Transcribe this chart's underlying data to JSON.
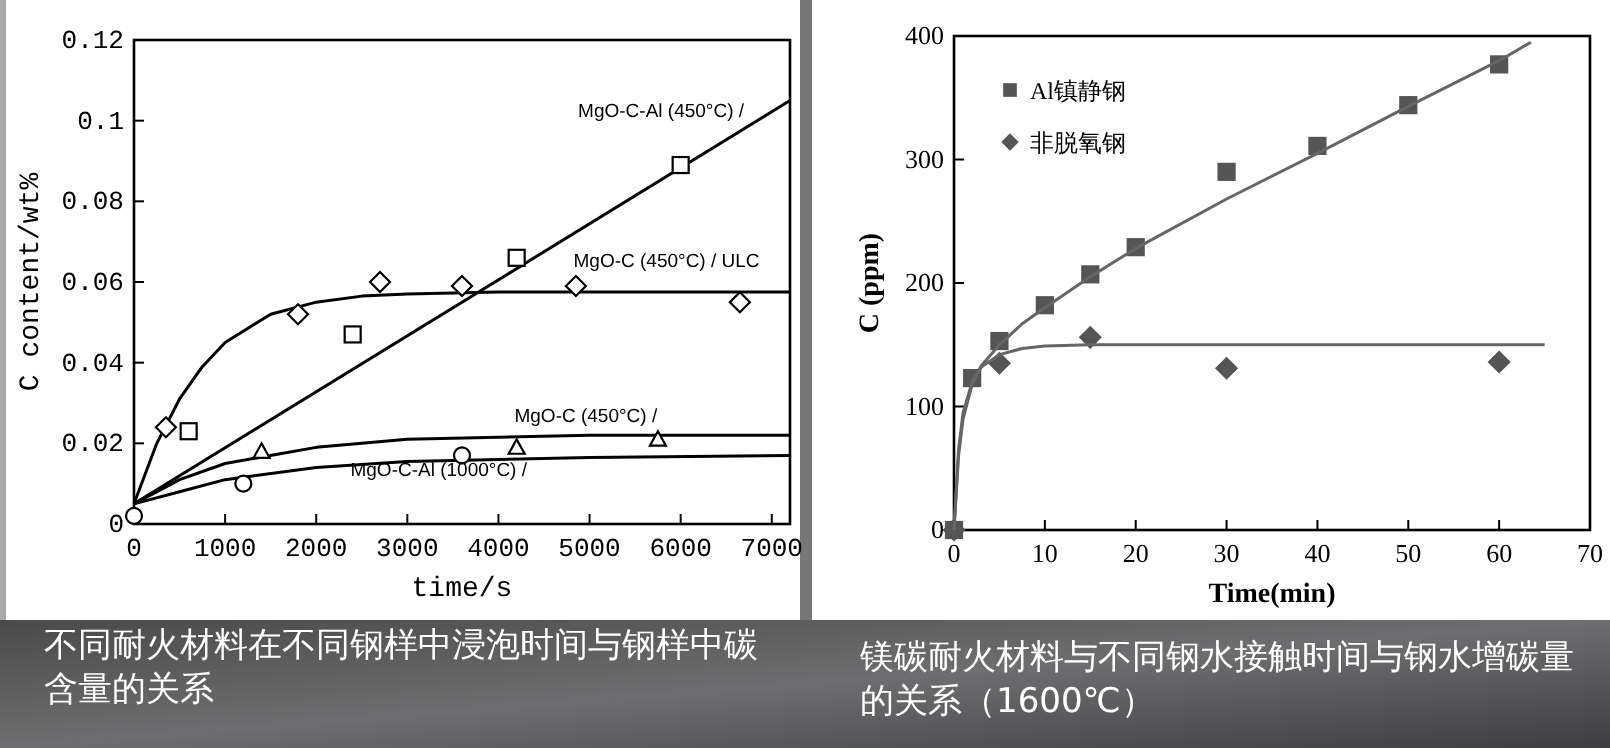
{
  "chart_data": [
    {
      "type": "scatter",
      "title": "不同耐火材料在不同钢样中浸泡时间与钢样中碳含量的关系",
      "xlabel": "time/s",
      "ylabel": "C content/wt%",
      "xlim": [
        0,
        7200
      ],
      "ylim": [
        0,
        0.12
      ],
      "xticks": [
        0,
        1000,
        2000,
        3000,
        4000,
        5000,
        6000,
        7000
      ],
      "yticks": [
        0,
        0.02,
        0.04,
        0.06,
        0.08,
        0.1,
        0.12
      ],
      "grid": false,
      "series": [
        {
          "type": "line",
          "name": "MgO-C-Al (450°C) /",
          "color": "#000000",
          "x": [
            0,
            7200
          ],
          "values": [
            0.005,
            0.105
          ]
        },
        {
          "type": "line",
          "name": "MgO-C (450°C) / ULC",
          "color": "#000000",
          "x": [
            0,
            250,
            500,
            750,
            1000,
            1500,
            2000,
            2500,
            3000,
            4000,
            5000,
            6000,
            7200
          ],
          "values": [
            0.005,
            0.02,
            0.031,
            0.039,
            0.045,
            0.052,
            0.055,
            0.0565,
            0.057,
            0.0575,
            0.0575,
            0.0575,
            0.0575
          ]
        },
        {
          "type": "line",
          "name": "MgO-C (450°C) /",
          "color": "#000000",
          "x": [
            0,
            500,
            1000,
            2000,
            3000,
            4000,
            5000,
            7200
          ],
          "values": [
            0.005,
            0.011,
            0.015,
            0.019,
            0.021,
            0.0215,
            0.022,
            0.022
          ]
        },
        {
          "type": "line",
          "name": "MgO-C-Al (1000°C) /",
          "color": "#000000",
          "x": [
            0,
            500,
            1000,
            2000,
            3000,
            4000,
            5000,
            7200
          ],
          "values": [
            0.005,
            0.008,
            0.011,
            0.014,
            0.0155,
            0.016,
            0.0165,
            0.017
          ]
        },
        {
          "type": "scatter",
          "marker": "square",
          "color": "#000000",
          "x": [
            600,
            2400,
            4200,
            6000
          ],
          "values": [
            0.023,
            0.047,
            0.066,
            0.089
          ]
        },
        {
          "type": "scatter",
          "marker": "diamond",
          "color": "#000000",
          "x": [
            350,
            1800,
            2700,
            3600,
            4850,
            6650
          ],
          "values": [
            0.024,
            0.052,
            0.06,
            0.059,
            0.059,
            0.055
          ]
        },
        {
          "type": "scatter",
          "marker": "triangle",
          "color": "#000000",
          "x": [
            1400,
            4200,
            5750
          ],
          "values": [
            0.018,
            0.019,
            0.021
          ]
        },
        {
          "type": "scatter",
          "marker": "circle",
          "color": "#000000",
          "x": [
            0,
            1200,
            3600
          ],
          "values": [
            0.002,
            0.01,
            0.017
          ]
        }
      ]
    },
    {
      "type": "scatter",
      "title": "镁碳耐火材料与不同钢水接触时间与钢水增碳量的关系（1600℃）",
      "xlabel": "Time(min)",
      "ylabel": "C (ppm)",
      "xlim": [
        0,
        70
      ],
      "ylim": [
        0,
        400
      ],
      "xticks": [
        0,
        10,
        20,
        30,
        40,
        50,
        60,
        70
      ],
      "yticks": [
        0,
        100,
        200,
        300,
        400
      ],
      "grid": false,
      "legend": "top left",
      "series": [
        {
          "type": "scatter",
          "name": "Al镇静钢",
          "marker": "square",
          "color": "#555555",
          "x": [
            0,
            2,
            5,
            10,
            15,
            20,
            30,
            40,
            50,
            60
          ],
          "values": [
            0,
            123,
            153,
            182,
            207,
            229,
            290,
            311,
            344,
            377
          ]
        },
        {
          "type": "scatter",
          "name": "非脱氧钢",
          "marker": "diamond",
          "color": "#555555",
          "x": [
            0,
            5,
            15,
            30,
            60
          ],
          "values": [
            0,
            135,
            156,
            131,
            136
          ]
        },
        {
          "type": "line",
          "color": "#666666",
          "x": [
            0,
            0.5,
            1,
            2,
            3,
            5,
            7.5,
            10,
            15,
            20,
            30,
            40,
            50,
            60,
            63.5
          ],
          "values": [
            0,
            60,
            90,
            118,
            133,
            150,
            167,
            180,
            205,
            228,
            268,
            305,
            343,
            380,
            395
          ]
        },
        {
          "type": "line",
          "color": "#666666",
          "x": [
            0,
            0.5,
            1,
            2,
            3,
            5,
            7.5,
            10,
            15,
            30,
            65
          ],
          "values": [
            0,
            65,
            95,
            120,
            132,
            142,
            147,
            149,
            150,
            150,
            150
          ]
        }
      ]
    }
  ]
}
